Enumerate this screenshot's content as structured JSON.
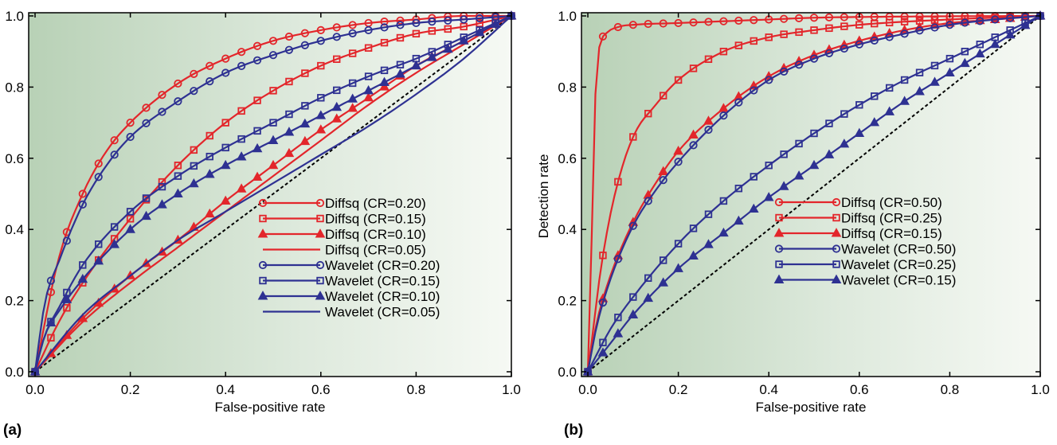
{
  "chart_data": [
    {
      "type": "line",
      "panel_label": "(a)",
      "xlabel": "False-positive rate",
      "ylabel": "Detection rate",
      "xlim": [
        0,
        1.0
      ],
      "ylim": [
        0,
        1.0
      ],
      "xticks": [
        "0.0",
        "0.2",
        "0.4",
        "0.6",
        "0.8",
        "1.0"
      ],
      "yticks": [
        "0.0",
        "0.2",
        "0.4",
        "0.6",
        "0.8",
        "1.0"
      ],
      "legend_position": "bottom-right",
      "diagonal_reference": true,
      "grid": false,
      "series": [
        {
          "name": "Diffsq (CR=0.20)",
          "color": "#e3262b",
          "marker": "circle",
          "x": [
            0,
            0.05,
            0.1,
            0.15,
            0.2,
            0.3,
            0.4,
            0.5,
            0.6,
            0.7,
            0.8,
            0.9,
            1.0
          ],
          "y": [
            0,
            0.32,
            0.5,
            0.62,
            0.7,
            0.81,
            0.88,
            0.93,
            0.96,
            0.98,
            0.99,
            1.0,
            1.0
          ]
        },
        {
          "name": "Diffsq (CR=0.15)",
          "color": "#e3262b",
          "marker": "square",
          "x": [
            0,
            0.05,
            0.1,
            0.2,
            0.3,
            0.4,
            0.5,
            0.6,
            0.7,
            0.8,
            0.9,
            1.0
          ],
          "y": [
            0,
            0.14,
            0.25,
            0.43,
            0.58,
            0.7,
            0.79,
            0.86,
            0.91,
            0.95,
            0.97,
            1.0
          ]
        },
        {
          "name": "Diffsq (CR=0.10)",
          "color": "#e3262b",
          "marker": "triangle",
          "x": [
            0,
            0.1,
            0.2,
            0.3,
            0.4,
            0.5,
            0.6,
            0.7,
            0.8,
            0.9,
            1.0
          ],
          "y": [
            0,
            0.15,
            0.27,
            0.37,
            0.48,
            0.58,
            0.68,
            0.77,
            0.86,
            0.93,
            1.0
          ]
        },
        {
          "name": "Diffsq (CR=0.05)",
          "color": "#e3262b",
          "marker": "none",
          "x": [
            0,
            0.1,
            0.2,
            0.3,
            0.4,
            0.5,
            0.6,
            0.7,
            0.8,
            0.9,
            1.0
          ],
          "y": [
            0,
            0.14,
            0.25,
            0.35,
            0.45,
            0.55,
            0.65,
            0.75,
            0.84,
            0.92,
            1.0
          ]
        },
        {
          "name": "Wavelet (CR=0.20)",
          "color": "#2e3192",
          "marker": "circle",
          "x": [
            0,
            0.02,
            0.05,
            0.1,
            0.15,
            0.2,
            0.3,
            0.4,
            0.5,
            0.6,
            0.7,
            0.8,
            0.9,
            1.0
          ],
          "y": [
            0,
            0.19,
            0.31,
            0.47,
            0.58,
            0.66,
            0.76,
            0.84,
            0.89,
            0.93,
            0.96,
            0.98,
            0.99,
            1.0
          ]
        },
        {
          "name": "Wavelet (CR=0.15)",
          "color": "#2e3192",
          "marker": "square",
          "x": [
            0,
            0.02,
            0.05,
            0.1,
            0.2,
            0.3,
            0.4,
            0.5,
            0.6,
            0.7,
            0.8,
            0.9,
            1.0
          ],
          "y": [
            0,
            0.1,
            0.18,
            0.3,
            0.45,
            0.55,
            0.63,
            0.7,
            0.77,
            0.83,
            0.88,
            0.94,
            1.0
          ]
        },
        {
          "name": "Wavelet (CR=0.10)",
          "color": "#2e3192",
          "marker": "triangle",
          "x": [
            0,
            0.02,
            0.05,
            0.1,
            0.2,
            0.3,
            0.4,
            0.5,
            0.6,
            0.7,
            0.8,
            0.9,
            1.0
          ],
          "y": [
            0,
            0.1,
            0.17,
            0.26,
            0.4,
            0.5,
            0.58,
            0.65,
            0.72,
            0.79,
            0.86,
            0.93,
            1.0
          ]
        },
        {
          "name": "Wavelet (CR=0.05)",
          "color": "#2e3192",
          "marker": "none",
          "x": [
            0,
            0.1,
            0.2,
            0.3,
            0.4,
            0.5,
            0.6,
            0.7,
            0.8,
            0.9,
            1.0
          ],
          "y": [
            0,
            0.16,
            0.27,
            0.37,
            0.45,
            0.53,
            0.61,
            0.69,
            0.78,
            0.88,
            1.0
          ]
        }
      ]
    },
    {
      "type": "line",
      "panel_label": "(b)",
      "xlabel": "False-positive rate",
      "ylabel": "Detection rate",
      "xlim": [
        0,
        1.0
      ],
      "ylim": [
        0,
        1.0
      ],
      "xticks": [
        "0.0",
        "0.2",
        "0.4",
        "0.6",
        "0.8",
        "1.0"
      ],
      "yticks": [
        "0.0",
        "0.2",
        "0.4",
        "0.6",
        "0.8",
        "1.0"
      ],
      "legend_position": "bottom-right",
      "diagonal_reference": true,
      "grid": false,
      "series": [
        {
          "name": "Diffsq (CR=0.50)",
          "color": "#e3262b",
          "marker": "circle",
          "x": [
            0,
            0.005,
            0.02,
            0.04,
            0.07,
            0.1,
            0.2,
            0.3,
            0.4,
            0.5,
            0.6,
            0.8,
            1.0
          ],
          "y": [
            0,
            0.21,
            0.86,
            0.95,
            0.97,
            0.975,
            0.98,
            0.985,
            0.99,
            0.995,
            0.997,
            0.999,
            1.0
          ]
        },
        {
          "name": "Diffsq (CR=0.25)",
          "color": "#e3262b",
          "marker": "square",
          "x": [
            0,
            0.01,
            0.03,
            0.06,
            0.1,
            0.15,
            0.2,
            0.3,
            0.4,
            0.5,
            0.6,
            0.8,
            1.0
          ],
          "y": [
            0,
            0.1,
            0.3,
            0.5,
            0.66,
            0.75,
            0.82,
            0.9,
            0.94,
            0.96,
            0.975,
            0.99,
            1.0
          ]
        },
        {
          "name": "Diffsq (CR=0.15)",
          "color": "#e3262b",
          "marker": "triangle",
          "x": [
            0,
            0.02,
            0.05,
            0.1,
            0.15,
            0.2,
            0.3,
            0.4,
            0.5,
            0.6,
            0.7,
            0.8,
            0.9,
            1.0
          ],
          "y": [
            0,
            0.14,
            0.27,
            0.42,
            0.53,
            0.62,
            0.74,
            0.83,
            0.89,
            0.93,
            0.96,
            0.98,
            0.99,
            1.0
          ]
        },
        {
          "name": "Wavelet (CR=0.50)",
          "color": "#2e3192",
          "marker": "circle",
          "x": [
            0,
            0.02,
            0.05,
            0.1,
            0.15,
            0.2,
            0.3,
            0.4,
            0.5,
            0.6,
            0.7,
            0.8,
            0.9,
            1.0
          ],
          "y": [
            0,
            0.13,
            0.26,
            0.41,
            0.51,
            0.59,
            0.72,
            0.82,
            0.88,
            0.92,
            0.95,
            0.975,
            0.99,
            1.0
          ]
        },
        {
          "name": "Wavelet (CR=0.25)",
          "color": "#2e3192",
          "marker": "square",
          "x": [
            0,
            0.05,
            0.1,
            0.2,
            0.3,
            0.4,
            0.5,
            0.6,
            0.7,
            0.8,
            0.9,
            1.0
          ],
          "y": [
            0,
            0.12,
            0.21,
            0.36,
            0.48,
            0.58,
            0.67,
            0.75,
            0.82,
            0.88,
            0.94,
            1.0
          ]
        },
        {
          "name": "Wavelet (CR=0.15)",
          "color": "#2e3192",
          "marker": "triangle",
          "x": [
            0,
            0.05,
            0.1,
            0.2,
            0.3,
            0.4,
            0.5,
            0.6,
            0.7,
            0.8,
            0.9,
            1.0
          ],
          "y": [
            0,
            0.08,
            0.16,
            0.29,
            0.39,
            0.49,
            0.58,
            0.67,
            0.76,
            0.84,
            0.92,
            1.0
          ]
        }
      ]
    }
  ]
}
